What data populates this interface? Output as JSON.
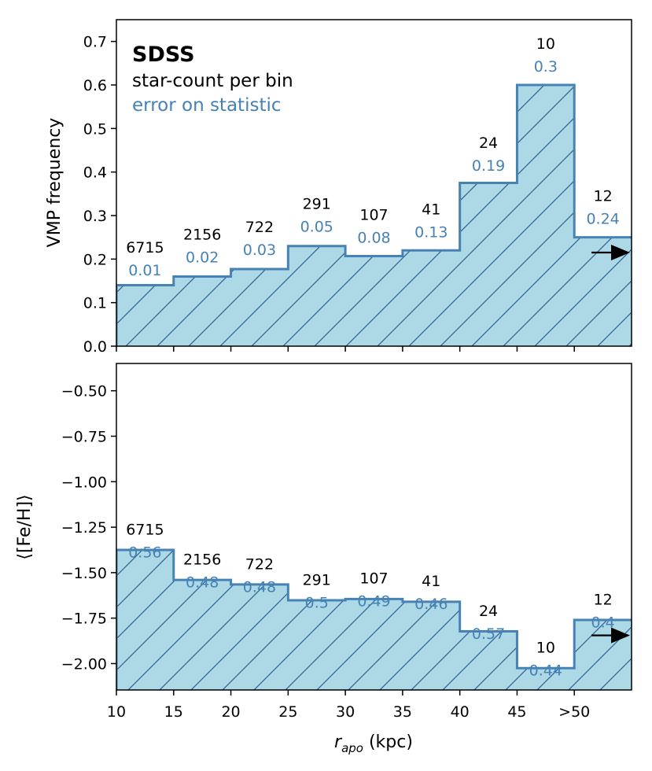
{
  "colors": {
    "fill": "#add8e6",
    "edge": "#4682b4",
    "hatch": "#2e5e8e",
    "count_text": "#000000",
    "error_text": "#4682b4"
  },
  "chart_data": [
    {
      "type": "bar",
      "subtype": "step-histogram",
      "panel": "top",
      "ylabel": "VMP frequency",
      "ylim": [
        0.0,
        0.75
      ],
      "yticks": [
        0.0,
        0.1,
        0.2,
        0.3,
        0.4,
        0.5,
        0.6,
        0.7
      ],
      "ytick_labels": [
        "0.0",
        "0.1",
        "0.2",
        "0.3",
        "0.4",
        "0.5",
        "0.6",
        "0.7"
      ],
      "bin_edges": [
        10,
        15,
        20,
        25,
        30,
        35,
        40,
        45,
        50,
        55
      ],
      "values": [
        0.14,
        0.16,
        0.177,
        0.23,
        0.207,
        0.22,
        0.375,
        0.6,
        0.25
      ],
      "counts": [
        "6715",
        "2156",
        "722",
        "291",
        "107",
        "41",
        "24",
        "10",
        "12"
      ],
      "errors": [
        "0.01",
        "0.02",
        "0.03",
        "0.05",
        "0.08",
        "0.13",
        "0.19",
        "0.3",
        "0.24"
      ],
      "label_y": [
        0.215,
        0.245,
        0.262,
        0.315,
        0.29,
        0.303,
        0.455,
        0.683,
        0.333
      ],
      "arrow": {
        "y": 0.215,
        "x_from": 51.5,
        "x_to": 55
      },
      "legend": {
        "title": "SDSS",
        "line1": "star-count per bin",
        "line2": "error on statistic",
        "placement": "top-left"
      }
    },
    {
      "type": "bar",
      "subtype": "step-histogram",
      "panel": "bottom",
      "ylabel": "⟨[Fe/H]⟩",
      "ylim": [
        -2.145,
        -0.35
      ],
      "yticks": [
        -2.0,
        -1.75,
        -1.5,
        -1.25,
        -1.0,
        -0.75,
        -0.5
      ],
      "ytick_labels": [
        "−2.00",
        "−1.75",
        "−1.50",
        "−1.25",
        "−1.00",
        "−0.75",
        "−0.50"
      ],
      "bin_edges": [
        10,
        15,
        20,
        25,
        30,
        35,
        40,
        45,
        50,
        55
      ],
      "values": [
        -1.375,
        -1.54,
        -1.565,
        -1.652,
        -1.645,
        -1.66,
        -1.823,
        -2.025,
        -1.76
      ],
      "counts": [
        "6715",
        "2156",
        "722",
        "291",
        "107",
        "41",
        "24",
        "10",
        "12"
      ],
      "errors": [
        "0.56",
        "0.48",
        "0.48",
        "0.5",
        "0.49",
        "0.46",
        "0.57",
        "0.44",
        "0.4"
      ],
      "label_y": [
        -1.29,
        -1.455,
        -1.48,
        -1.567,
        -1.56,
        -1.575,
        -1.738,
        -1.94,
        -1.675
      ],
      "arrow": {
        "y": -1.845,
        "x_from": 51.5,
        "x_to": 55
      },
      "xlabel_italic": "r",
      "xlabel_sub": "apo",
      "xlabel_rest": " (kpc)",
      "xlim": [
        10,
        55
      ],
      "xticks": [
        10,
        15,
        20,
        25,
        30,
        35,
        40,
        45,
        50
      ],
      "xtick_labels": [
        "10",
        "15",
        "20",
        "25",
        "30",
        "35",
        "40",
        "45",
        ">50"
      ]
    }
  ]
}
